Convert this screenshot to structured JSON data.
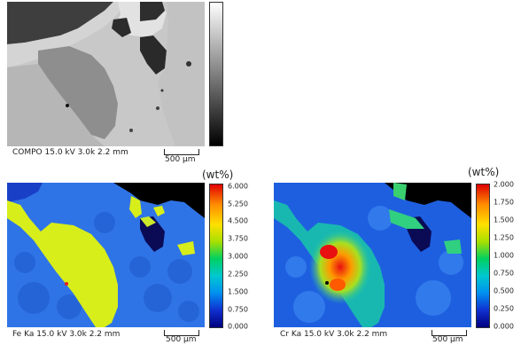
{
  "compo": {
    "caption": "COMPO 15.0 kV 3.0k 2.2 mm",
    "scale": "500 µm"
  },
  "fe": {
    "caption": "Fe Ka 15.0 kV 3.0k 2.2 mm",
    "scale": "500 µm",
    "unit": "(wt%)",
    "ticks": [
      "6.000",
      "5.250",
      "4.500",
      "3.750",
      "3.000",
      "2.250",
      "1.500",
      "0.750",
      "0.000"
    ]
  },
  "cr": {
    "caption": "Cr Ka 15.0 kV 3.0k 2.2 mm",
    "scale": "500 µm",
    "unit": "(wt%)",
    "ticks": [
      "2.000",
      "1.750",
      "1.500",
      "1.250",
      "1.000",
      "0.750",
      "0.500",
      "0.250",
      "0.000"
    ]
  }
}
